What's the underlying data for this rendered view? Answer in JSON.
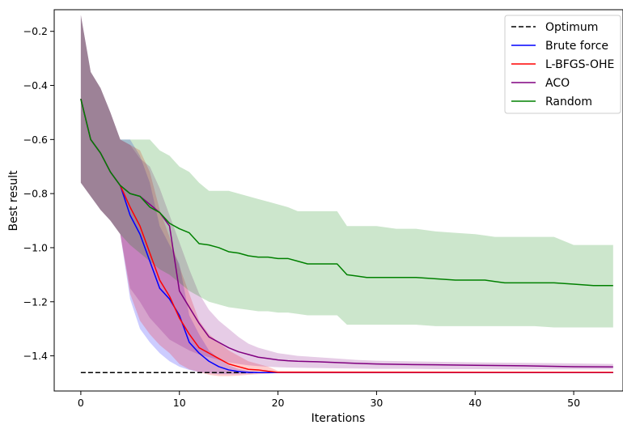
{
  "chart_data": {
    "type": "line",
    "title": "",
    "xlabel": "Iterations",
    "ylabel": "Best result",
    "xlim": [
      -2.7,
      55
    ],
    "ylim": [
      -1.53,
      -0.12
    ],
    "xticks": [
      0,
      10,
      20,
      30,
      40,
      50
    ],
    "yticks": [
      -0.2,
      -0.4,
      -0.6,
      -0.8,
      -1.0,
      -1.2,
      -1.4
    ],
    "xtick_labels": [
      "0",
      "10",
      "20",
      "30",
      "40",
      "50"
    ],
    "ytick_labels": [
      "−0.2",
      "−0.4",
      "−0.6",
      "−0.8",
      "−1.0",
      "−1.2",
      "−1.4"
    ],
    "grid": false,
    "legend_position": "top-right",
    "series": [
      {
        "name": "Optimum",
        "color": "#000000",
        "style": "dashed",
        "x": [
          0,
          54
        ],
        "y": [
          -1.462,
          -1.462
        ]
      },
      {
        "name": "Brute force",
        "color": "#0000ff",
        "style": "solid",
        "band_alpha": 0.2,
        "x": [
          0,
          1,
          2,
          3,
          4,
          5,
          6,
          7,
          8,
          9,
          10,
          11,
          12,
          13,
          14,
          15,
          16,
          17,
          18,
          19,
          20,
          54
        ],
        "y": [
          -0.45,
          -0.6,
          -0.65,
          -0.72,
          -0.77,
          -0.88,
          -0.95,
          -1.05,
          -1.15,
          -1.19,
          -1.25,
          -1.35,
          -1.39,
          -1.42,
          -1.44,
          -1.452,
          -1.458,
          -1.461,
          -1.462,
          -1.462,
          -1.462,
          -1.462
        ],
        "lower": [
          -0.76,
          -0.81,
          -0.86,
          -0.9,
          -0.95,
          -1.19,
          -1.3,
          -1.35,
          -1.39,
          -1.42,
          -1.44,
          -1.452,
          -1.46,
          -1.465,
          -1.468,
          -1.468,
          -1.468,
          -1.466,
          -1.464,
          -1.463,
          -1.462,
          -1.462
        ],
        "upper": [
          -0.14,
          -0.35,
          -0.41,
          -0.5,
          -0.6,
          -0.6,
          -0.66,
          -0.76,
          -0.92,
          -0.99,
          -1.06,
          -1.25,
          -1.32,
          -1.38,
          -1.41,
          -1.435,
          -1.448,
          -1.455,
          -1.459,
          -1.461,
          -1.462,
          -1.462
        ]
      },
      {
        "name": "L-BFGS-OHE",
        "color": "#ff0000",
        "style": "solid",
        "band_alpha": 0.2,
        "x": [
          0,
          1,
          2,
          3,
          4,
          5,
          6,
          7,
          8,
          9,
          10,
          11,
          12,
          13,
          14,
          15,
          16,
          17,
          18,
          19,
          20,
          54
        ],
        "y": [
          -0.45,
          -0.6,
          -0.65,
          -0.72,
          -0.77,
          -0.85,
          -0.92,
          -1.02,
          -1.12,
          -1.18,
          -1.26,
          -1.32,
          -1.37,
          -1.39,
          -1.41,
          -1.43,
          -1.44,
          -1.45,
          -1.452,
          -1.457,
          -1.461,
          -1.461
        ],
        "lower": [
          -0.76,
          -0.81,
          -0.86,
          -0.9,
          -0.95,
          -1.17,
          -1.27,
          -1.32,
          -1.36,
          -1.39,
          -1.43,
          -1.45,
          -1.46,
          -1.47,
          -1.475,
          -1.475,
          -1.473,
          -1.47,
          -1.468,
          -1.466,
          -1.463,
          -1.462
        ],
        "upper": [
          -0.14,
          -0.35,
          -0.41,
          -0.5,
          -0.6,
          -0.62,
          -0.64,
          -0.72,
          -0.86,
          -0.96,
          -1.07,
          -1.17,
          -1.27,
          -1.32,
          -1.35,
          -1.38,
          -1.4,
          -1.42,
          -1.43,
          -1.44,
          -1.455,
          -1.46
        ]
      },
      {
        "name": "ACO",
        "color": "#800080",
        "style": "solid",
        "band_alpha": 0.2,
        "x": [
          0,
          1,
          2,
          3,
          4,
          5,
          6,
          7,
          8,
          9,
          10,
          11,
          12,
          13,
          14,
          15,
          16,
          17,
          18,
          19,
          20,
          21,
          22,
          24,
          26,
          28,
          30,
          33,
          36,
          40,
          45,
          50,
          54
        ],
        "y": [
          -0.45,
          -0.6,
          -0.65,
          -0.72,
          -0.77,
          -0.8,
          -0.81,
          -0.84,
          -0.87,
          -0.92,
          -1.16,
          -1.22,
          -1.28,
          -1.33,
          -1.35,
          -1.37,
          -1.385,
          -1.395,
          -1.405,
          -1.41,
          -1.415,
          -1.418,
          -1.42,
          -1.422,
          -1.425,
          -1.428,
          -1.43,
          -1.432,
          -1.433,
          -1.435,
          -1.437,
          -1.44,
          -1.441
        ],
        "lower": [
          -0.76,
          -0.81,
          -0.86,
          -0.9,
          -0.95,
          -1.15,
          -1.2,
          -1.26,
          -1.3,
          -1.34,
          -1.36,
          -1.38,
          -1.395,
          -1.405,
          -1.415,
          -1.425,
          -1.43,
          -1.435,
          -1.438,
          -1.44,
          -1.442,
          -1.443,
          -1.444,
          -1.445,
          -1.446,
          -1.447,
          -1.448,
          -1.448,
          -1.449,
          -1.449,
          -1.45,
          -1.45,
          -1.45
        ],
        "upper": [
          -0.14,
          -0.35,
          -0.41,
          -0.5,
          -0.6,
          -0.62,
          -0.67,
          -0.7,
          -0.78,
          -0.88,
          -0.98,
          -1.08,
          -1.17,
          -1.23,
          -1.27,
          -1.3,
          -1.33,
          -1.355,
          -1.37,
          -1.38,
          -1.39,
          -1.395,
          -1.4,
          -1.405,
          -1.41,
          -1.415,
          -1.418,
          -1.42,
          -1.422,
          -1.424,
          -1.426,
          -1.428,
          -1.43
        ]
      },
      {
        "name": "Random",
        "color": "#008000",
        "style": "solid",
        "band_alpha": 0.2,
        "x": [
          0,
          1,
          2,
          3,
          4,
          5,
          6,
          7,
          8,
          9,
          10,
          11,
          12,
          13,
          14,
          15,
          16,
          17,
          18,
          19,
          20,
          21,
          22,
          23,
          24,
          25,
          26,
          27,
          28,
          29,
          30,
          32,
          34,
          36,
          38,
          40,
          41,
          42,
          43,
          44,
          46,
          48,
          50,
          52,
          54
        ],
        "y": [
          -0.45,
          -0.6,
          -0.65,
          -0.72,
          -0.77,
          -0.8,
          -0.81,
          -0.85,
          -0.87,
          -0.91,
          -0.93,
          -0.945,
          -0.985,
          -0.99,
          -1.0,
          -1.015,
          -1.02,
          -1.03,
          -1.035,
          -1.035,
          -1.04,
          -1.04,
          -1.05,
          -1.06,
          -1.06,
          -1.06,
          -1.06,
          -1.1,
          -1.105,
          -1.11,
          -1.11,
          -1.11,
          -1.11,
          -1.115,
          -1.12,
          -1.12,
          -1.12,
          -1.125,
          -1.13,
          -1.13,
          -1.13,
          -1.13,
          -1.135,
          -1.14,
          -1.14
        ],
        "lower": [
          -0.76,
          -0.81,
          -0.86,
          -0.9,
          -0.95,
          -0.99,
          -1.02,
          -1.05,
          -1.08,
          -1.1,
          -1.13,
          -1.16,
          -1.18,
          -1.2,
          -1.21,
          -1.22,
          -1.225,
          -1.23,
          -1.235,
          -1.235,
          -1.24,
          -1.24,
          -1.245,
          -1.25,
          -1.25,
          -1.25,
          -1.25,
          -1.285,
          -1.285,
          -1.285,
          -1.285,
          -1.285,
          -1.285,
          -1.29,
          -1.29,
          -1.29,
          -1.29,
          -1.29,
          -1.29,
          -1.29,
          -1.29,
          -1.295,
          -1.295,
          -1.295,
          -1.295
        ],
        "upper": [
          -0.14,
          -0.35,
          -0.41,
          -0.5,
          -0.6,
          -0.6,
          -0.6,
          -0.6,
          -0.64,
          -0.66,
          -0.7,
          -0.72,
          -0.76,
          -0.79,
          -0.79,
          -0.79,
          -0.8,
          -0.81,
          -0.82,
          -0.83,
          -0.84,
          -0.85,
          -0.865,
          -0.865,
          -0.865,
          -0.865,
          -0.865,
          -0.92,
          -0.92,
          -0.92,
          -0.92,
          -0.93,
          -0.93,
          -0.94,
          -0.945,
          -0.95,
          -0.955,
          -0.96,
          -0.96,
          -0.96,
          -0.96,
          -0.96,
          -0.99,
          -0.99,
          -0.99
        ]
      }
    ]
  }
}
